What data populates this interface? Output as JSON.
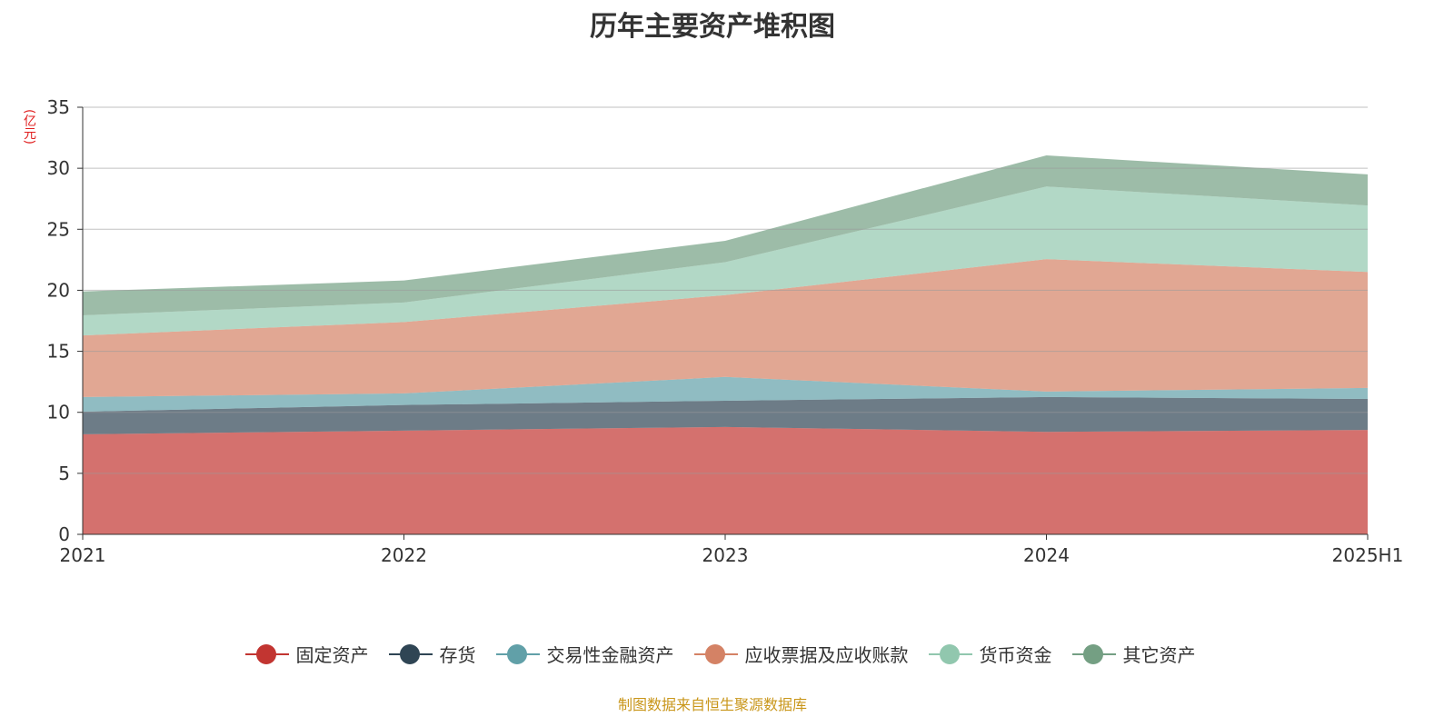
{
  "title": "历年主要资产堆积图",
  "source": "制图数据来自恒生聚源数据库",
  "chart_data": {
    "type": "area",
    "stacked": true,
    "title": "历年主要资产堆积图",
    "ylabel": "(亿元)",
    "ylim": [
      0,
      35
    ],
    "yticks": [
      0,
      5,
      10,
      15,
      20,
      25,
      30,
      35
    ],
    "grid": true,
    "legend_position": "bottom",
    "categories": [
      "2021",
      "2022",
      "2023",
      "2024",
      "2025H1"
    ],
    "series": [
      {
        "name": "固定资产",
        "color": "#c23531",
        "values": [
          8.2,
          8.5,
          8.8,
          8.4,
          8.55
        ]
      },
      {
        "name": "存货",
        "color": "#2f4554",
        "values": [
          1.85,
          2.1,
          2.15,
          2.85,
          2.55
        ]
      },
      {
        "name": "交易性金融资产",
        "color": "#61a0a8",
        "values": [
          1.2,
          0.95,
          1.95,
          0.45,
          0.9
        ]
      },
      {
        "name": "应收票据及应收账款",
        "color": "#d48265",
        "values": [
          5.05,
          5.85,
          6.7,
          10.85,
          9.5
        ]
      },
      {
        "name": "货币资金",
        "color": "#91c7ae",
        "values": [
          1.65,
          1.6,
          2.7,
          5.95,
          5.45
        ]
      },
      {
        "name": "其它资产",
        "color": "#749f83",
        "values": [
          1.95,
          1.8,
          1.75,
          2.55,
          2.55
        ]
      }
    ]
  }
}
